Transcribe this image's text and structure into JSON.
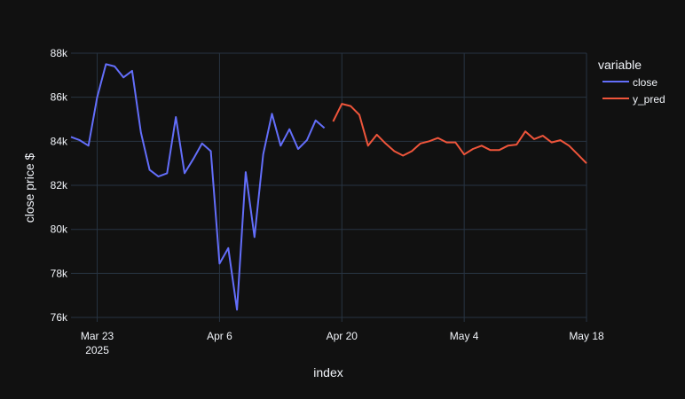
{
  "chart_data": {
    "type": "line",
    "xlabel": "index",
    "ylabel": "close price $",
    "legend": {
      "title": "variable",
      "placement": "right"
    },
    "x_range": [
      "2025-03-20",
      "2025-05-18"
    ],
    "ylim": [
      75800,
      88000
    ],
    "grid": true,
    "x_ticks": [
      {
        "date": "2025-03-23",
        "label": "Mar 23",
        "sublabel": "2025"
      },
      {
        "date": "2025-04-06",
        "label": "Apr 6",
        "sublabel": ""
      },
      {
        "date": "2025-04-20",
        "label": "Apr 20",
        "sublabel": ""
      },
      {
        "date": "2025-05-04",
        "label": "May 4",
        "sublabel": ""
      },
      {
        "date": "2025-05-18",
        "label": "May 18",
        "sublabel": ""
      }
    ],
    "y_ticks": [
      {
        "value": 76000,
        "label": "76k"
      },
      {
        "value": 78000,
        "label": "78k"
      },
      {
        "value": 80000,
        "label": "80k"
      },
      {
        "value": 82000,
        "label": "82k"
      },
      {
        "value": 84000,
        "label": "84k"
      },
      {
        "value": 86000,
        "label": "86k"
      },
      {
        "value": 88000,
        "label": "88k"
      }
    ],
    "series": [
      {
        "name": "close",
        "color": "#636efa",
        "x": [
          "2025-03-20",
          "2025-03-21",
          "2025-03-22",
          "2025-03-23",
          "2025-03-24",
          "2025-03-25",
          "2025-03-26",
          "2025-03-27",
          "2025-03-28",
          "2025-03-29",
          "2025-03-30",
          "2025-03-31",
          "2025-04-01",
          "2025-04-02",
          "2025-04-03",
          "2025-04-04",
          "2025-04-05",
          "2025-04-06",
          "2025-04-07",
          "2025-04-08",
          "2025-04-09",
          "2025-04-10",
          "2025-04-11",
          "2025-04-12",
          "2025-04-13",
          "2025-04-14",
          "2025-04-15",
          "2025-04-16",
          "2025-04-17",
          "2025-04-18"
        ],
        "values": [
          84200,
          84050,
          83800,
          86000,
          87500,
          87400,
          86900,
          87200,
          84400,
          82700,
          82400,
          82550,
          85100,
          82550,
          83200,
          83900,
          83550,
          78450,
          79150,
          76350,
          82600,
          79650,
          83400,
          85250,
          83800,
          84550,
          83650,
          84050,
          84950,
          84600
        ]
      },
      {
        "name": "y_pred",
        "color": "#ef553b",
        "x": [
          "2025-04-19",
          "2025-04-20",
          "2025-04-21",
          "2025-04-22",
          "2025-04-23",
          "2025-04-24",
          "2025-04-25",
          "2025-04-26",
          "2025-04-27",
          "2025-04-28",
          "2025-04-29",
          "2025-04-30",
          "2025-05-01",
          "2025-05-02",
          "2025-05-03",
          "2025-05-04",
          "2025-05-05",
          "2025-05-06",
          "2025-05-07",
          "2025-05-08",
          "2025-05-09",
          "2025-05-10",
          "2025-05-11",
          "2025-05-12",
          "2025-05-13",
          "2025-05-14",
          "2025-05-15",
          "2025-05-16",
          "2025-05-17",
          "2025-05-18"
        ],
        "values": [
          84900,
          85700,
          85600,
          85200,
          83800,
          84300,
          83900,
          83550,
          83350,
          83550,
          83900,
          84000,
          84150,
          83950,
          83950,
          83400,
          83650,
          83800,
          83600,
          83600,
          83800,
          83850,
          84450,
          84100,
          84250,
          83950,
          84050,
          83800,
          83400,
          83000
        ]
      }
    ]
  }
}
